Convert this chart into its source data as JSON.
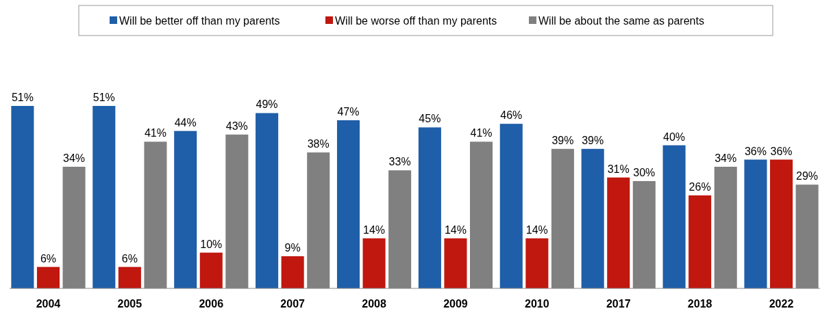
{
  "chart_data": {
    "type": "bar",
    "categories": [
      "2004",
      "2005",
      "2006",
      "2007",
      "2008",
      "2009",
      "2010",
      "2017",
      "2018",
      "2022"
    ],
    "series": [
      {
        "name": "Will be better off than my parents",
        "color": "#1f5ea8",
        "values": [
          51,
          51,
          44,
          49,
          47,
          45,
          46,
          39,
          40,
          36
        ],
        "value_labels": [
          "51%",
          "51%",
          "44%",
          "49%",
          "47%",
          "45%",
          "46%",
          "39%",
          "40%",
          "36%"
        ]
      },
      {
        "name": "Will be worse off than my parents",
        "color": "#c0170f",
        "values": [
          6,
          6,
          10,
          9,
          14,
          14,
          14,
          31,
          26,
          36
        ],
        "value_labels": [
          "6%",
          "6%",
          "10%",
          "9%",
          "14%",
          "14%",
          "14%",
          "31%",
          "26%",
          "36%"
        ]
      },
      {
        "name": "Will be about the same as parents",
        "color": "#808080",
        "values": [
          34,
          41,
          43,
          38,
          33,
          41,
          39,
          30,
          34,
          29
        ],
        "value_labels": [
          "34%",
          "41%",
          "43%",
          "38%",
          "33%",
          "41%",
          "39%",
          "30%",
          "34%",
          "29%"
        ]
      }
    ],
    "legend": "top"
  }
}
